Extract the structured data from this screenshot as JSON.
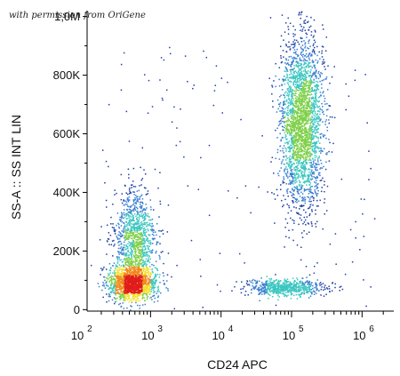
{
  "watermark": "with permission from OriGene",
  "chart_data": {
    "type": "scatter",
    "subtype": "flow cytometry density dot plot",
    "xlabel": "CD24 APC",
    "ylabel": "SS-A :: SS INT LIN",
    "x_scale": "log",
    "xlim": [
      2.1,
      6.45
    ],
    "ylim": [
      -5000,
      1020000
    ],
    "x_ticks": [
      {
        "base": "10",
        "exp": "2",
        "value": 2
      },
      {
        "base": "10",
        "exp": "3",
        "value": 3
      },
      {
        "base": "10",
        "exp": "4",
        "value": 4
      },
      {
        "base": "10",
        "exp": "5",
        "value": 5
      },
      {
        "base": "10",
        "exp": "6",
        "value": 6
      }
    ],
    "y_ticks": [
      {
        "label": "0",
        "value": 0
      },
      {
        "label": "200K",
        "value": 200000
      },
      {
        "label": "400K",
        "value": 400000
      },
      {
        "label": "600K",
        "value": 600000
      },
      {
        "label": "800K",
        "value": 800000
      },
      {
        "label": "1,0M",
        "value": 1000000
      }
    ],
    "color_scale": [
      "#1f3fa6",
      "#3a7fd1",
      "#3cc6c0",
      "#7fd04a",
      "#f2e02c",
      "#f08a1c",
      "#e01d1a"
    ],
    "populations": [
      {
        "name": "low-SS CD24-low",
        "center_log_x": 2.75,
        "center_y": 90000,
        "spread_log_x": 0.17,
        "spread_y": 28000,
        "points": 1400
      },
      {
        "name": "mid-SS CD24-low",
        "center_log_x": 2.78,
        "center_y": 230000,
        "spread_log_x": 0.15,
        "spread_y": 90000,
        "points": 1200
      },
      {
        "name": "high-SS CD24-high",
        "center_log_x": 5.15,
        "center_y": 640000,
        "spread_log_x": 0.15,
        "spread_y": 145000,
        "points": 2600
      },
      {
        "name": "low-SS CD24-high",
        "center_log_x": 4.9,
        "center_y": 75000,
        "spread_log_x": 0.28,
        "spread_y": 14000,
        "points": 650
      }
    ]
  }
}
